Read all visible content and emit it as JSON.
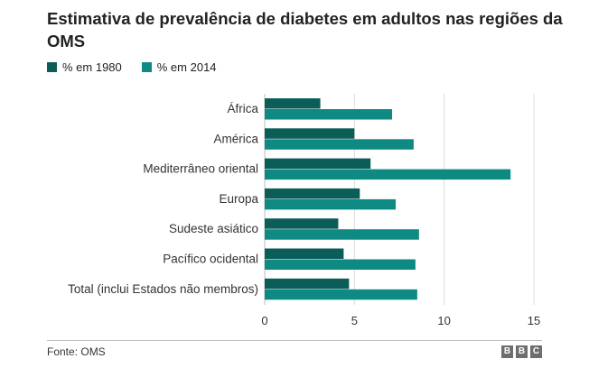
{
  "chart_data": {
    "type": "bar",
    "orientation": "horizontal",
    "title": "Estimativa de prevalência de diabetes em adultos nas regiões da OMS",
    "categories": [
      "África",
      "América",
      "Mediterrâneo oriental",
      "Europa",
      "Sudeste asiático",
      "Pacífico ocidental",
      "Total (inclui Estados não membros)"
    ],
    "series": [
      {
        "name": "% em 1980",
        "color": "#0b5e58",
        "values": [
          3.1,
          5.0,
          5.9,
          5.3,
          4.1,
          4.4,
          4.7
        ]
      },
      {
        "name": "% em 2014",
        "color": "#0e8a83",
        "values": [
          7.1,
          8.3,
          13.7,
          7.3,
          8.6,
          8.4,
          8.5
        ]
      }
    ],
    "xlim": [
      0,
      15
    ],
    "xticks": [
      0,
      5,
      10,
      15
    ],
    "xlabel": "",
    "ylabel": "",
    "grid": true,
    "legend": "top-left"
  },
  "source": "Fonte: OMS",
  "logo": [
    "B",
    "B",
    "C"
  ]
}
